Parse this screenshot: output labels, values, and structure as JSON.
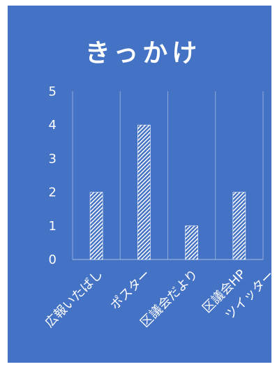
{
  "chart_data": {
    "type": "bar",
    "title": "きっかけ",
    "categories": [
      "広報いたばし",
      "ポスター",
      "区議会だより",
      "区議会HP\nツイッター"
    ],
    "values": [
      2,
      4,
      1,
      2
    ],
    "ylim": [
      0,
      5
    ],
    "yticks": [
      0,
      1,
      2,
      3,
      4,
      5
    ],
    "xlabel": "",
    "ylabel": "",
    "grid": true,
    "legend": "none",
    "background_color": "#4472c4",
    "bar_fill": "hatched white",
    "text_color": "#ffffff"
  }
}
